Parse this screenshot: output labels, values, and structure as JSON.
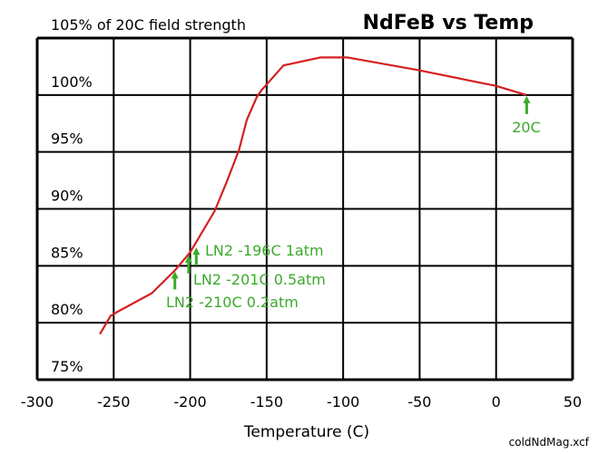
{
  "chart_data": {
    "type": "line",
    "title": "NdFeB vs Temp",
    "subtitle": "105% of 20C field strength",
    "xlabel": "Temperature (C)",
    "ylabel": "",
    "xlim": [
      -300,
      50
    ],
    "ylim": [
      75,
      105
    ],
    "x_ticks": [
      -300,
      -250,
      -200,
      -150,
      -100,
      -50,
      0,
      50
    ],
    "y_ticks": [
      75,
      80,
      85,
      90,
      95,
      100
    ],
    "y_tick_labels": [
      "75%",
      "80%",
      "85%",
      "90%",
      "95%",
      "100%"
    ],
    "grid": true,
    "series_color": "#d42020",
    "annotation_color": "#3aaa2a",
    "series": [
      {
        "x": [
          -259,
          -252,
          -247,
          -225,
          -210,
          -200,
          -184,
          -176,
          -168,
          -163,
          -156.5,
          -153.5,
          -139,
          -115,
          -97,
          -85,
          -51.5,
          0,
          19.7
        ],
        "y": [
          79.0,
          80.6,
          81.0,
          82.6,
          84.6,
          86.2,
          89.8,
          92.4,
          95.2,
          97.8,
          99.8,
          100.4,
          102.6,
          103.3,
          103.3,
          103.0,
          102.2,
          100.8,
          100.0
        ]
      }
    ],
    "annotations": [
      {
        "text": "LN2  -196C  1atm",
        "x": -196,
        "y": 86.7
      },
      {
        "text": "LN2 -201C 0.5atm",
        "x": -201,
        "y": 86.0
      },
      {
        "text": "LN2 -210C 0.2atm",
        "x": -210,
        "y": 84.6
      },
      {
        "text": "20C",
        "x": 20,
        "y": 100
      }
    ],
    "footer": "coldNdMag.xcf"
  }
}
